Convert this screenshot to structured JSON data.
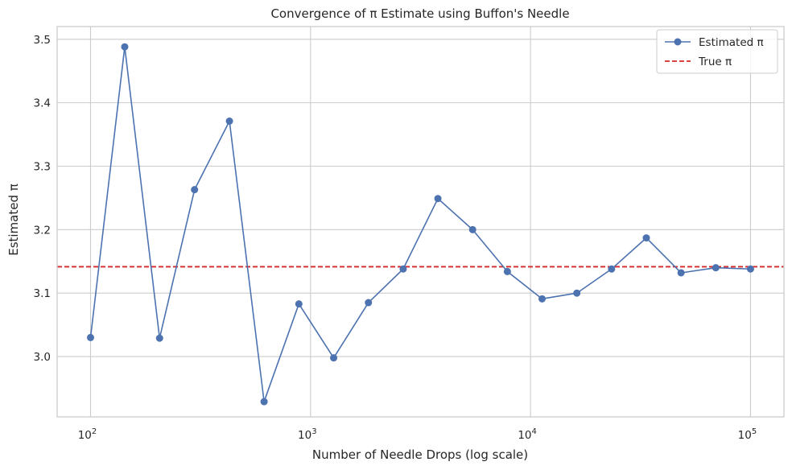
{
  "chart_data": {
    "type": "line",
    "title": "Convergence of π Estimate using Buffon's Needle",
    "xlabel": "Number of Needle Drops (log scale)",
    "ylabel": "Estimated π",
    "x_scale": "log",
    "xlim": [
      70.5,
      141900
    ],
    "ylim": [
      2.905,
      3.52
    ],
    "x_ticks": [
      {
        "value": 100,
        "base": "10",
        "exp": "2"
      },
      {
        "value": 1000,
        "base": "10",
        "exp": "3"
      },
      {
        "value": 10000,
        "base": "10",
        "exp": "4"
      },
      {
        "value": 100000,
        "base": "10",
        "exp": "5"
      }
    ],
    "y_ticks": [
      "3.0",
      "3.1",
      "3.2",
      "3.3",
      "3.4",
      "3.5"
    ],
    "grid": true,
    "legend_position": "top-right",
    "series": [
      {
        "name": "Estimated π",
        "color": "#4c72b0",
        "marker": "circle",
        "x": [
          100,
          143,
          206,
          297,
          428,
          615,
          885,
          1274,
          1833,
          2637,
          3793,
          5455,
          7847,
          11288,
          16237,
          23357,
          33598,
          48329,
          69519,
          100000
        ],
        "y": [
          3.03,
          3.488,
          3.029,
          3.263,
          3.371,
          2.929,
          3.083,
          2.998,
          3.085,
          3.138,
          3.249,
          3.2,
          3.134,
          3.091,
          3.1,
          3.138,
          3.187,
          3.132,
          3.14,
          3.138
        ]
      }
    ],
    "reference_lines": [
      {
        "name": "True π",
        "value": 3.14159,
        "color": "#d62728",
        "style": "dashed"
      }
    ]
  }
}
